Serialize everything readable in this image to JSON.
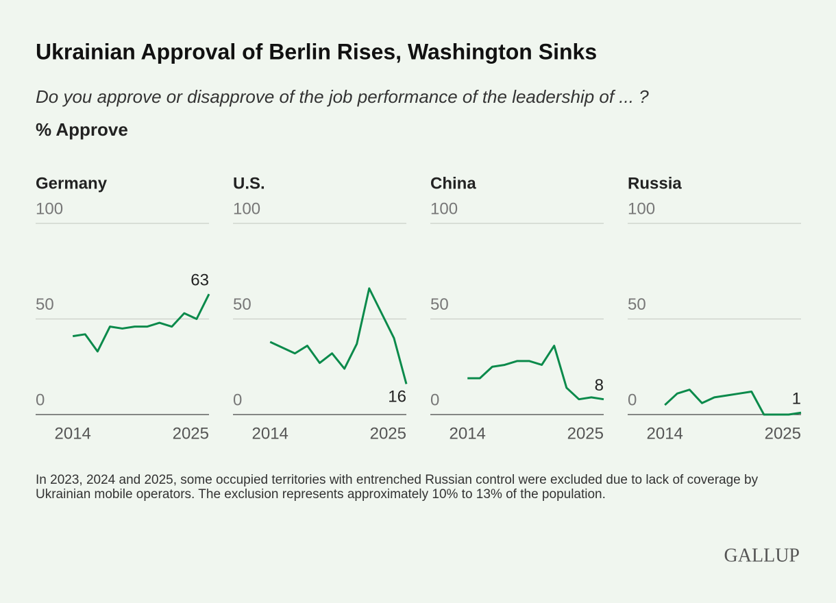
{
  "header": {
    "title": "Ukrainian Approval of Berlin Rises, Washington Sinks",
    "question": "Do you approve or disapprove of the job performance of the leadership of ... ?",
    "unit": "% Approve"
  },
  "chart_data": [
    {
      "type": "line",
      "title": "Germany",
      "color": "#0b8a4b",
      "xlim": [
        2011,
        2025
      ],
      "xticks": [
        2014,
        2025
      ],
      "ylim": [
        0,
        100
      ],
      "yticks": [
        0,
        50,
        100
      ],
      "grid": true,
      "x": [
        2014,
        2015,
        2016,
        2017,
        2018,
        2019,
        2020,
        2021,
        2022,
        2023,
        2024,
        2025
      ],
      "values": [
        41,
        42,
        33,
        46,
        45,
        46,
        46,
        48,
        46,
        53,
        50,
        63
      ]
    },
    {
      "type": "line",
      "title": "U.S.",
      "color": "#0b8a4b",
      "xlim": [
        2011,
        2025
      ],
      "xticks": [
        2014,
        2025
      ],
      "ylim": [
        0,
        100
      ],
      "yticks": [
        0,
        50,
        100
      ],
      "grid": true,
      "x": [
        2014,
        2015,
        2016,
        2017,
        2018,
        2019,
        2020,
        2021,
        2022,
        2023,
        2024,
        2025
      ],
      "values": [
        38,
        35,
        32,
        36,
        27,
        32,
        24,
        37,
        66,
        53,
        40,
        16
      ]
    },
    {
      "type": "line",
      "title": "China",
      "color": "#0b8a4b",
      "xlim": [
        2011,
        2025
      ],
      "xticks": [
        2014,
        2025
      ],
      "ylim": [
        0,
        100
      ],
      "yticks": [
        0,
        50,
        100
      ],
      "grid": true,
      "x": [
        2014,
        2015,
        2016,
        2017,
        2018,
        2019,
        2020,
        2021,
        2022,
        2023,
        2024,
        2025
      ],
      "values": [
        19,
        19,
        25,
        26,
        28,
        28,
        26,
        36,
        14,
        8,
        9,
        8
      ]
    },
    {
      "type": "line",
      "title": "Russia",
      "color": "#0b8a4b",
      "xlim": [
        2011,
        2025
      ],
      "xticks": [
        2014,
        2025
      ],
      "ylim": [
        0,
        100
      ],
      "yticks": [
        0,
        50,
        100
      ],
      "grid": true,
      "x": [
        2014,
        2015,
        2016,
        2017,
        2018,
        2019,
        2020,
        2021,
        2022,
        2023,
        2024,
        2025
      ],
      "values": [
        5,
        11,
        13,
        6,
        9,
        10,
        11,
        12,
        0,
        0,
        0,
        1
      ]
    }
  ],
  "footnote": "In 2023, 2024 and 2025, some occupied territories with entrenched Russian control were excluded due to lack of coverage by Ukrainian mobile operators. The exclusion represents approximately 10% to 13% of the population.",
  "logo": "GALLUP"
}
